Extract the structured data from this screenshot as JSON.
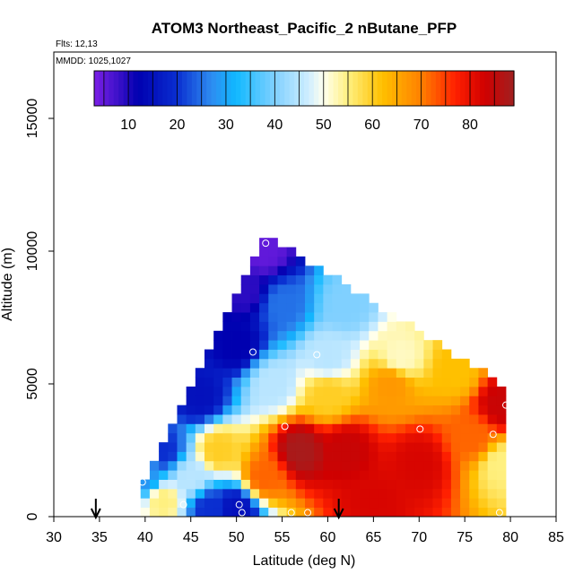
{
  "chart_data": {
    "type": "heatmap",
    "title": "ATOM3 Northeast_Pacific_2 nButane_PFP",
    "subtitle_lines": [
      "Flts: 12,13",
      "MMDD: 1025,1027"
    ],
    "xlabel": "Latitude (deg N)",
    "ylabel": "Altitude (m)",
    "xlim": [
      30,
      85
    ],
    "ylim": [
      0,
      17500
    ],
    "x_ticks": [
      30,
      35,
      40,
      45,
      50,
      55,
      60,
      65,
      70,
      75,
      80,
      85
    ],
    "y_ticks": [
      0,
      5000,
      10000,
      15000
    ],
    "colorbar": {
      "range": [
        3,
        89
      ],
      "ticks": [
        10,
        20,
        30,
        40,
        50,
        60,
        70,
        80
      ],
      "position": "top",
      "stops": [
        {
          "v": 3,
          "c": "#7B1FE6"
        },
        {
          "v": 8,
          "c": "#3A10C8"
        },
        {
          "v": 12,
          "c": "#0000B0"
        },
        {
          "v": 20,
          "c": "#0A2ED0"
        },
        {
          "v": 27,
          "c": "#2E8CF0"
        },
        {
          "v": 32,
          "c": "#10B8FF"
        },
        {
          "v": 40,
          "c": "#80D0FF"
        },
        {
          "v": 47,
          "c": "#D0EEFF"
        },
        {
          "v": 50,
          "c": "#FFFFEE"
        },
        {
          "v": 55,
          "c": "#FFF080"
        },
        {
          "v": 62,
          "c": "#FFC000"
        },
        {
          "v": 70,
          "c": "#FF8000"
        },
        {
          "v": 77,
          "c": "#FF2000"
        },
        {
          "v": 83,
          "c": "#D00000"
        },
        {
          "v": 89,
          "c": "#A02020"
        }
      ]
    },
    "grid": false,
    "legend": "colorbar top",
    "field_description": "gridded curtain of nButane values by latitude and altitude",
    "field": {
      "lat_range": [
        39.5,
        79.5
      ],
      "lat_step": 1.0,
      "alt_step": 350,
      "anchors": [
        {
          "lat": 42,
          "alt": 600,
          "v": 55
        },
        {
          "lat": 40,
          "alt": 1500,
          "v": 28
        },
        {
          "lat": 42,
          "alt": 2500,
          "v": 20
        },
        {
          "lat": 45,
          "alt": 1500,
          "v": 45
        },
        {
          "lat": 46,
          "alt": 4500,
          "v": 15
        },
        {
          "lat": 48,
          "alt": 2500,
          "v": 60
        },
        {
          "lat": 47,
          "alt": 300,
          "v": 20
        },
        {
          "lat": 50,
          "alt": 300,
          "v": 15
        },
        {
          "lat": 50,
          "alt": 6500,
          "v": 12
        },
        {
          "lat": 51,
          "alt": 8500,
          "v": 9
        },
        {
          "lat": 53,
          "alt": 10000,
          "v": 5
        },
        {
          "lat": 55,
          "alt": 8000,
          "v": 25
        },
        {
          "lat": 54,
          "alt": 5000,
          "v": 45
        },
        {
          "lat": 53,
          "alt": 1500,
          "v": 72
        },
        {
          "lat": 57,
          "alt": 2500,
          "v": 88
        },
        {
          "lat": 60,
          "alt": 6000,
          "v": 45
        },
        {
          "lat": 62,
          "alt": 8000,
          "v": 40
        },
        {
          "lat": 60,
          "alt": 4600,
          "v": 60
        },
        {
          "lat": 62,
          "alt": 2500,
          "v": 84
        },
        {
          "lat": 65,
          "alt": 600,
          "v": 82
        },
        {
          "lat": 67,
          "alt": 5000,
          "v": 67
        },
        {
          "lat": 68,
          "alt": 6000,
          "v": 52
        },
        {
          "lat": 70,
          "alt": 2000,
          "v": 82
        },
        {
          "lat": 74,
          "alt": 5500,
          "v": 62
        },
        {
          "lat": 76,
          "alt": 3000,
          "v": 72
        },
        {
          "lat": 79,
          "alt": 4200,
          "v": 84
        },
        {
          "lat": 79,
          "alt": 2000,
          "v": 55
        }
      ]
    },
    "sample_points": [
      {
        "lat": 53.2,
        "alt": 10300
      },
      {
        "lat": 51.8,
        "alt": 6200
      },
      {
        "lat": 58.8,
        "alt": 6100
      },
      {
        "lat": 55.3,
        "alt": 3400
      },
      {
        "lat": 70.1,
        "alt": 3300
      },
      {
        "lat": 78.1,
        "alt": 3100
      },
      {
        "lat": 79.5,
        "alt": 4200
      },
      {
        "lat": 39.7,
        "alt": 1300
      },
      {
        "lat": 44.2,
        "alt": 450
      },
      {
        "lat": 50.3,
        "alt": 450
      },
      {
        "lat": 50.6,
        "alt": 150
      },
      {
        "lat": 56.0,
        "alt": 150
      },
      {
        "lat": 57.8,
        "alt": 150
      },
      {
        "lat": 78.8,
        "alt": 150
      }
    ],
    "arrows": [
      {
        "lat": 34.6
      },
      {
        "lat": 61.2
      }
    ]
  }
}
